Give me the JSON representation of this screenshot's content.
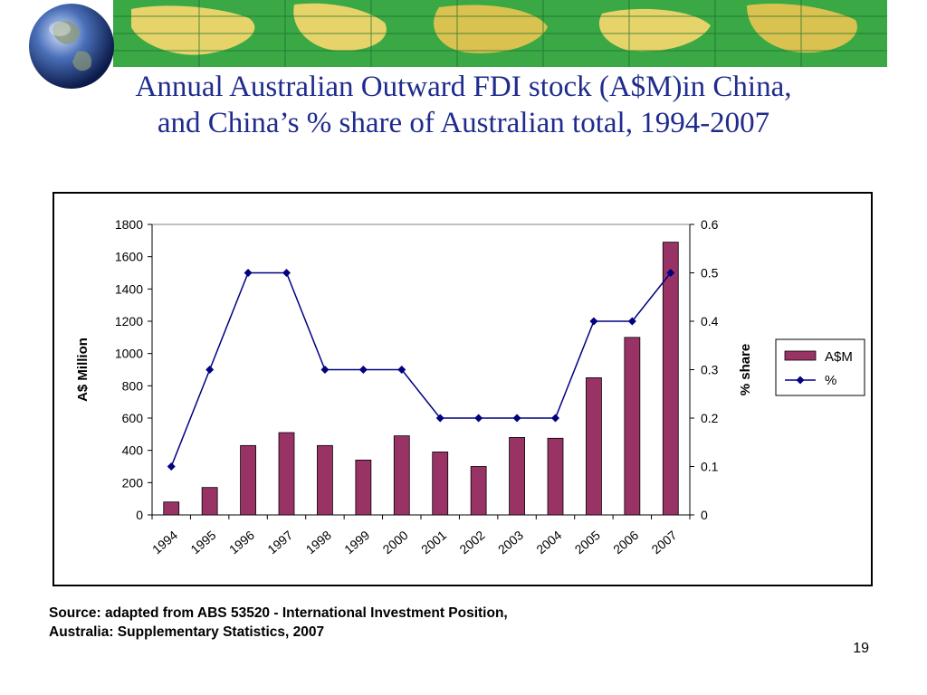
{
  "slide": {
    "title_line1": "Annual Australian Outward FDI stock (A$M)in China,",
    "title_line2": "and China’s % share of Australian total, 1994-2007",
    "source_line1": "Source: adapted from ABS 53520 - International Investment Position,",
    "source_line2": "Australia: Supplementary Statistics, 2007",
    "page_number": "19",
    "colors": {
      "title": "#1f2b8e",
      "banner": "#2f9e3a",
      "bar": "#993366",
      "line": "#000080"
    }
  },
  "chart_data": {
    "type": "bar",
    "categories": [
      "1994",
      "1995",
      "1996",
      "1997",
      "1998",
      "1999",
      "2000",
      "2001",
      "2002",
      "2003",
      "2004",
      "2005",
      "2006",
      "2007"
    ],
    "series": [
      {
        "name": "A$M",
        "type": "bar",
        "axis": "left",
        "values": [
          80,
          170,
          430,
          510,
          430,
          340,
          490,
          390,
          300,
          480,
          475,
          850,
          1100,
          1690
        ]
      },
      {
        "name": "%",
        "type": "line",
        "axis": "right",
        "values": [
          0.1,
          0.3,
          0.5,
          0.5,
          0.3,
          0.3,
          0.3,
          0.2,
          0.2,
          0.2,
          0.2,
          0.4,
          0.4,
          0.5
        ]
      }
    ],
    "ylabel": "A$ Million",
    "y2label": "% share",
    "ylim": [
      0,
      1800
    ],
    "y2lim": [
      0,
      0.6
    ],
    "yticks": [
      "0",
      "200",
      "400",
      "600",
      "800",
      "1000",
      "1200",
      "1400",
      "1600",
      "1800"
    ],
    "y2ticks": [
      "0",
      "0.1",
      "0.2",
      "0.3",
      "0.4",
      "0.5",
      "0.6"
    ],
    "grid": "top gridline only",
    "legend": "right"
  }
}
